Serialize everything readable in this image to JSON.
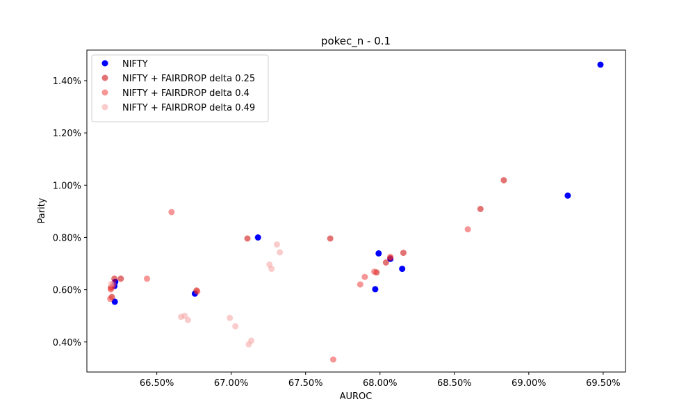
{
  "chart_data": {
    "type": "scatter",
    "title": "pokec_n - 0.1",
    "xlabel": "AUROC",
    "ylabel": "Parity",
    "xlim": [
      0.6603,
      0.6965
    ],
    "ylim": [
      0.00285,
      0.01517
    ],
    "x_ticks": [
      0.665,
      0.67,
      0.675,
      0.68,
      0.685,
      0.69,
      0.695
    ],
    "x_tick_labels": [
      "66.50%",
      "67.00%",
      "67.50%",
      "68.00%",
      "68.50%",
      "69.00%",
      "69.50%"
    ],
    "y_ticks": [
      0.004,
      0.006,
      0.008,
      0.01,
      0.012,
      0.014
    ],
    "y_tick_labels": [
      "0.40%",
      "0.60%",
      "0.80%",
      "1.00%",
      "1.20%",
      "1.40%"
    ],
    "grid": false,
    "legend_position": "top-left",
    "series": [
      {
        "name": "NIFTY",
        "color": "#0000ff",
        "opacity": 1.0,
        "x": [
          0.66215,
          0.66221,
          0.66218,
          0.66756,
          0.6718,
          0.67968,
          0.67991,
          0.6807,
          0.68149,
          0.69262,
          0.69482
        ],
        "y": [
          0.00614,
          0.0063,
          0.00554,
          0.00585,
          0.008,
          0.00602,
          0.00739,
          0.00718,
          0.0068,
          0.0096,
          0.01461
        ]
      },
      {
        "name": "NIFTY + FAIRDROP delta 0.25",
        "color": "#cc0000",
        "opacity": 0.55,
        "x": [
          0.66191,
          0.66198,
          0.66215,
          0.66258,
          0.66767,
          0.67109,
          0.67666,
          0.67977,
          0.6804,
          0.68069,
          0.68157,
          0.68675,
          0.68832
        ],
        "y": [
          0.00607,
          0.00572,
          0.00642,
          0.00642,
          0.00597,
          0.00796,
          0.00796,
          0.00666,
          0.00704,
          0.00722,
          0.00741,
          0.00909,
          0.01019
        ]
      },
      {
        "name": "NIFTY + FAIRDROP delta 0.4",
        "color": "#f04040",
        "opacity": 0.55,
        "x": [
          0.66187,
          0.66191,
          0.662,
          0.66207,
          0.66434,
          0.66599,
          0.66772,
          0.67686,
          0.67867,
          0.67898,
          0.67962,
          0.6807,
          0.6859
        ],
        "y": [
          0.00565,
          0.00601,
          0.0061,
          0.00621,
          0.00642,
          0.00897,
          0.00593,
          0.00333,
          0.0062,
          0.00649,
          0.00669,
          0.00725,
          0.00831
        ]
      },
      {
        "name": "NIFTY + FAIRDROP delta 0.49",
        "color": "#f5a3a3",
        "opacity": 0.55,
        "x": [
          0.66193,
          0.66663,
          0.66687,
          0.66709,
          0.66991,
          0.67028,
          0.67118,
          0.67135,
          0.67257,
          0.67271,
          0.67307,
          0.67327
        ],
        "y": [
          0.00622,
          0.00496,
          0.005,
          0.00484,
          0.00492,
          0.0046,
          0.00391,
          0.00405,
          0.00696,
          0.0068,
          0.00773,
          0.00743
        ]
      }
    ]
  }
}
